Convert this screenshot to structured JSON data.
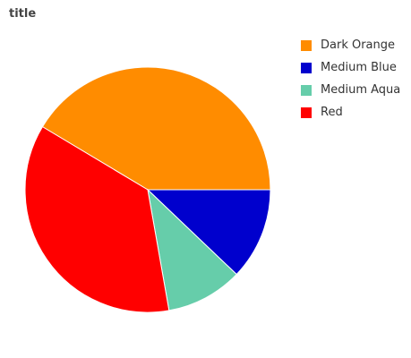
{
  "chart_data": {
    "type": "pie",
    "title": "title",
    "categories": [
      "Dark Orange",
      "Medium Blue",
      "Medium Aqua",
      "Red"
    ],
    "values": [
      41,
      12,
      10,
      36
    ],
    "colors": [
      "#ff8c00",
      "#0000cd",
      "#66cdaa",
      "#ff0000"
    ],
    "legend_position": "right"
  }
}
